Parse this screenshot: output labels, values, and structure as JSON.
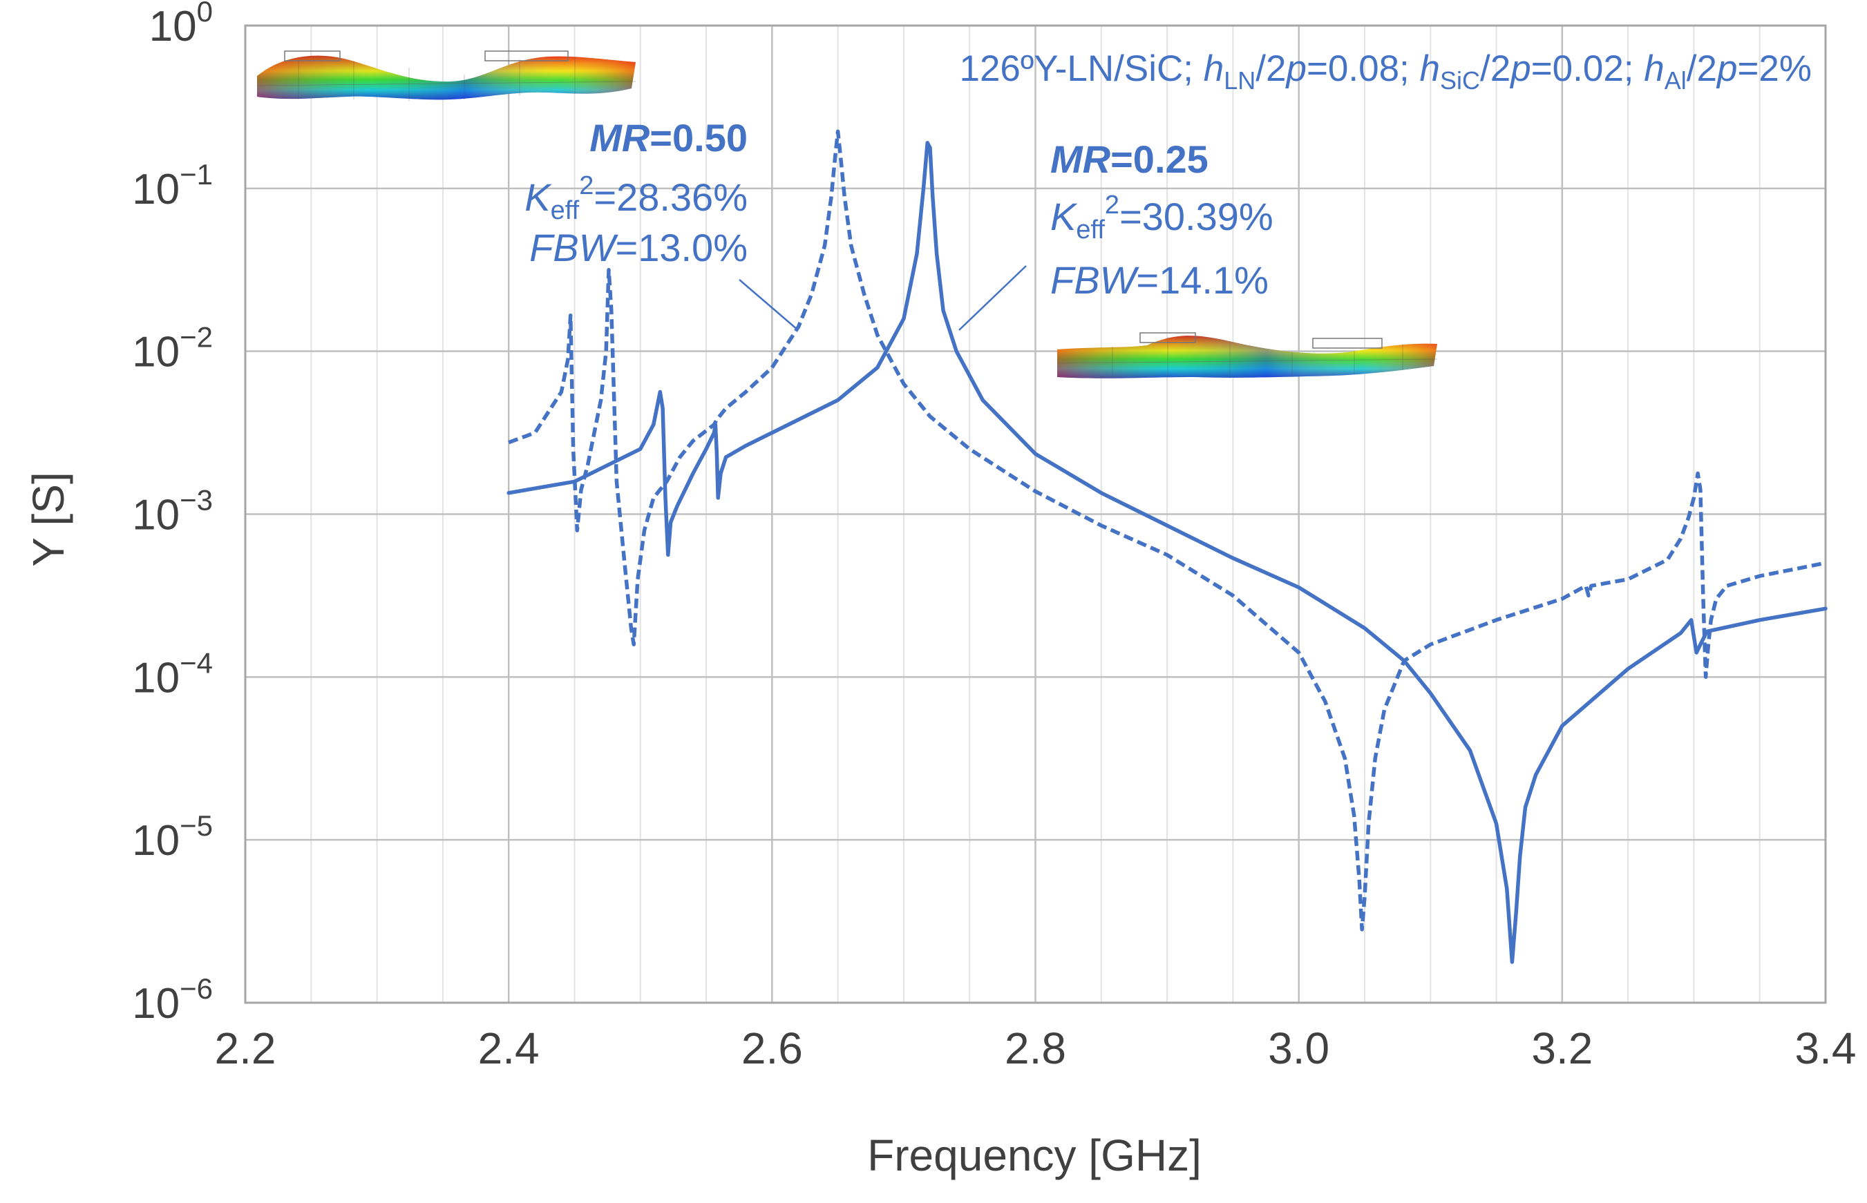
{
  "chart_data": {
    "type": "line",
    "xlabel": "Frequency [GHz]",
    "ylabel": "Y [S]",
    "xlim": [
      2.2,
      3.4
    ],
    "ylim_exponent": [
      -6,
      0
    ],
    "y_scale": "log",
    "x_ticks": [
      "2.2",
      "2.4",
      "2.6",
      "2.8",
      "3.0",
      "3.2",
      "3.4"
    ],
    "x_tick_values": [
      2.2,
      2.4,
      2.6,
      2.8,
      3.0,
      3.2,
      3.4
    ],
    "y_tick_base": "10",
    "y_tick_exponents": [
      "0",
      "−1",
      "−2",
      "−3",
      "−4",
      "−5",
      "−6"
    ],
    "y_tick_values": [
      0,
      -1,
      -2,
      -3,
      -4,
      -5,
      -6
    ],
    "header": {
      "lead": "126ºY-LN/SiC; ",
      "h1": "h",
      "s1": "LN",
      "t1": "/2",
      "p1": "p",
      "t2": "=0.08; ",
      "h2": "h",
      "s2": "SiC",
      "t3": "/2",
      "p2": "p",
      "t4": "=0.02; ",
      "h3": "h",
      "s3": "Al",
      "t5": "/2",
      "p3": "p",
      "t6": "=2%"
    },
    "annotations": {
      "mr050": {
        "title_var": "MR",
        "title_val": "=0.50",
        "k_var": "K",
        "k_sub": "eff",
        "k_sup": "2",
        "k_val": "=28.36%",
        "fbw_var": "FBW",
        "fbw_val": "=13.0%"
      },
      "mr025": {
        "title_var": "MR",
        "title_val": "=0.25",
        "k_var": "K",
        "k_sub": "eff",
        "k_sup": "2",
        "k_val": "=30.39%",
        "fbw_var": "FBW",
        "fbw_val": "=14.1%"
      }
    },
    "series": [
      {
        "name": "MR=0.50",
        "style": "dashed",
        "color": "#4472C4",
        "x": [
          2.4,
          2.42,
          2.44,
          2.445,
          2.447,
          2.449,
          2.452,
          2.455,
          2.46,
          2.47,
          2.474,
          2.476,
          2.478,
          2.482,
          2.488,
          2.493,
          2.495,
          2.498,
          2.503,
          2.51,
          2.52,
          2.53,
          2.54,
          2.556,
          2.558,
          2.56,
          2.565,
          2.58,
          2.6,
          2.62,
          2.63,
          2.64,
          2.645,
          2.648,
          2.65,
          2.652,
          2.655,
          2.66,
          2.67,
          2.68,
          2.7,
          2.72,
          2.75,
          2.8,
          2.85,
          2.9,
          2.95,
          3.0,
          3.02,
          3.035,
          3.042,
          3.046,
          3.048,
          3.05,
          3.053,
          3.058,
          3.065,
          3.08,
          3.1,
          3.15,
          3.2,
          3.218,
          3.22,
          3.222,
          3.25,
          3.28,
          3.29,
          3.296,
          3.3,
          3.303,
          3.305,
          3.307,
          3.309,
          3.311,
          3.313,
          3.317,
          3.325,
          3.35,
          3.4
        ],
        "y_log10": [
          -2.56,
          -2.5,
          -2.25,
          -2.05,
          -1.78,
          -2.6,
          -3.1,
          -2.85,
          -2.7,
          -2.3,
          -2.0,
          -1.5,
          -1.75,
          -2.8,
          -3.3,
          -3.7,
          -3.8,
          -3.4,
          -3.1,
          -2.9,
          -2.8,
          -2.65,
          -2.55,
          -2.45,
          -2.42,
          -2.4,
          -2.35,
          -2.25,
          -2.1,
          -1.85,
          -1.65,
          -1.35,
          -1.05,
          -0.8,
          -0.65,
          -0.8,
          -1.05,
          -1.35,
          -1.65,
          -1.9,
          -2.2,
          -2.4,
          -2.6,
          -2.86,
          -3.07,
          -3.25,
          -3.5,
          -3.85,
          -4.15,
          -4.5,
          -4.85,
          -5.25,
          -5.55,
          -5.35,
          -4.9,
          -4.5,
          -4.2,
          -3.9,
          -3.8,
          -3.65,
          -3.52,
          -3.44,
          -3.5,
          -3.44,
          -3.4,
          -3.28,
          -3.15,
          -3.02,
          -2.9,
          -2.75,
          -2.85,
          -3.5,
          -4.0,
          -3.8,
          -3.65,
          -3.52,
          -3.44,
          -3.38,
          -3.3
        ]
      },
      {
        "name": "MR=0.25",
        "style": "solid",
        "color": "#4472C4",
        "x": [
          2.4,
          2.45,
          2.5,
          2.51,
          2.515,
          2.517,
          2.519,
          2.521,
          2.523,
          2.528,
          2.54,
          2.55,
          2.556,
          2.557,
          2.558,
          2.559,
          2.561,
          2.565,
          2.58,
          2.6,
          2.65,
          2.68,
          2.7,
          2.71,
          2.715,
          2.718,
          2.72,
          2.722,
          2.725,
          2.73,
          2.74,
          2.76,
          2.8,
          2.85,
          2.9,
          2.95,
          3.0,
          3.05,
          3.08,
          3.1,
          3.13,
          3.15,
          3.158,
          3.162,
          3.165,
          3.168,
          3.172,
          3.18,
          3.2,
          3.25,
          3.29,
          3.298,
          3.3,
          3.302,
          3.305,
          3.31,
          3.35,
          3.4
        ],
        "y_log10": [
          -2.87,
          -2.8,
          -2.6,
          -2.45,
          -2.25,
          -2.35,
          -2.9,
          -3.25,
          -3.05,
          -2.95,
          -2.75,
          -2.6,
          -2.5,
          -2.45,
          -2.62,
          -2.9,
          -2.75,
          -2.65,
          -2.58,
          -2.5,
          -2.3,
          -2.1,
          -1.8,
          -1.4,
          -1.0,
          -0.72,
          -0.75,
          -1.05,
          -1.4,
          -1.75,
          -2.0,
          -2.3,
          -2.63,
          -2.87,
          -3.07,
          -3.27,
          -3.45,
          -3.7,
          -3.9,
          -4.1,
          -4.45,
          -4.9,
          -5.3,
          -5.75,
          -5.45,
          -5.1,
          -4.8,
          -4.6,
          -4.3,
          -3.95,
          -3.73,
          -3.65,
          -3.75,
          -3.85,
          -3.8,
          -3.72,
          -3.65,
          -3.58
        ]
      }
    ]
  },
  "insets": {
    "top_left": "fem-mode-shape-mr050",
    "mid_right": "fem-mode-shape-mr025"
  }
}
